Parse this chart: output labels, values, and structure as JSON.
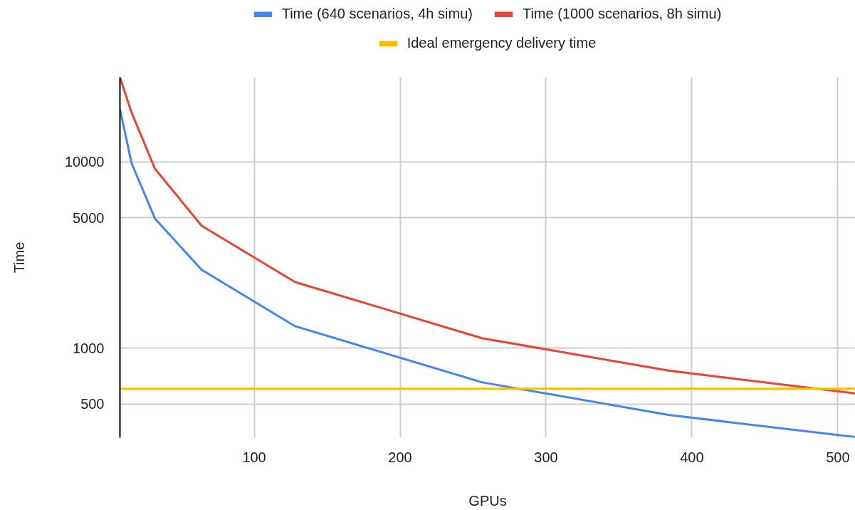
{
  "chart_data": {
    "type": "line",
    "xlabel": "GPUs",
    "ylabel": "Time",
    "log": "y",
    "grid": true,
    "legend": "top",
    "line_style": "solid",
    "marker": "none",
    "xlim": [
      8,
      512
    ],
    "xticks": [
      100,
      200,
      300,
      400,
      500
    ],
    "ylim": [
      330,
      28400
    ],
    "yticks": [
      500,
      1000,
      5000,
      10000
    ],
    "x": [
      8,
      16,
      32,
      64,
      128,
      256,
      384,
      512
    ],
    "series": [
      {
        "name": "Time (640 scenarios, 4h simu)",
        "color": "#4285f4",
        "values": [
          19100,
          9800,
          4950,
          2630,
          1310,
          655,
          437,
          333
        ]
      },
      {
        "name": "Time (1000 scenarios, 8h simu)",
        "color": "#ea4335",
        "values": [
          28400,
          18300,
          9160,
          4530,
          2260,
          1130,
          756,
          570
        ]
      },
      {
        "name": "Ideal emergency delivery time",
        "color": "#fbbc04",
        "x": [
          8,
          512
        ],
        "values": [
          605,
          605
        ]
      }
    ]
  }
}
